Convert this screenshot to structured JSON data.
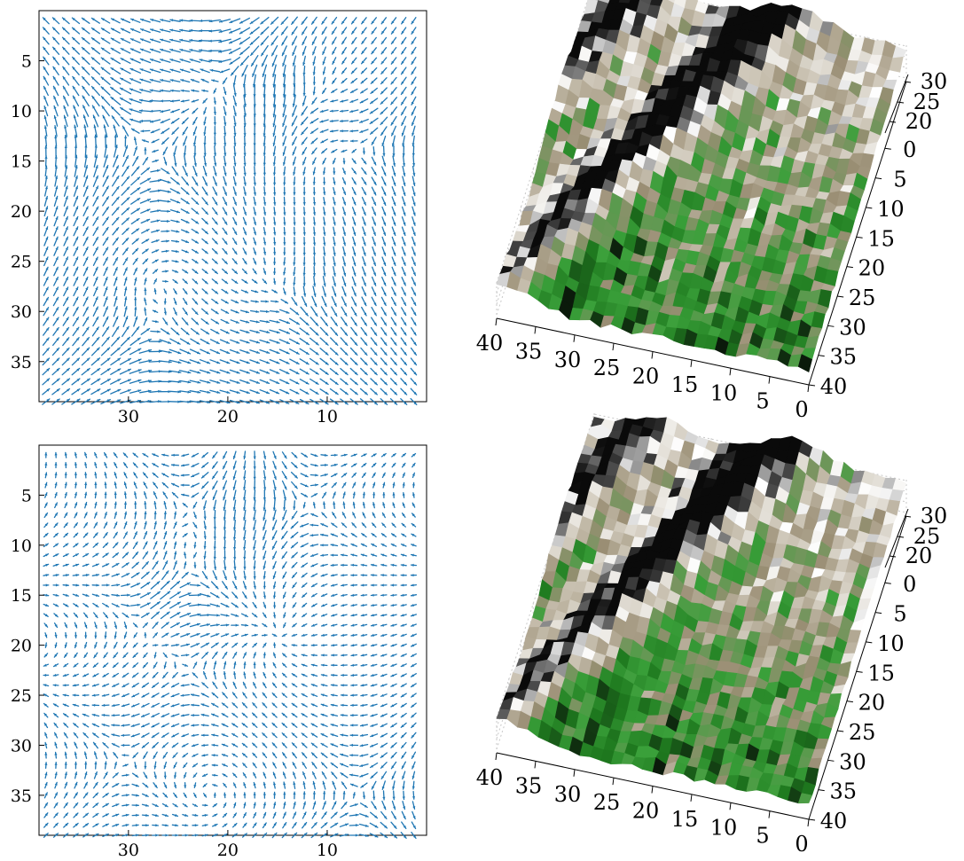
{
  "chart_data": [
    {
      "type": "quiver",
      "panel": "top-left",
      "xlim": [
        39,
        0
      ],
      "ylim": [
        39,
        0
      ],
      "xticks": [
        "30",
        "20",
        "10"
      ],
      "yticks": [
        "5",
        "10",
        "15",
        "20",
        "25",
        "30",
        "35"
      ],
      "grid": false,
      "arrow_color": "#1f77b4",
      "field_seed": 1
    },
    {
      "type": "surface3d",
      "panel": "top-right",
      "x_ticks": [
        "40",
        "35",
        "30",
        "25",
        "20",
        "15",
        "10",
        "5",
        "0"
      ],
      "y_ticks": [
        "0",
        "5",
        "10",
        "15",
        "20",
        "25",
        "30",
        "35",
        "40"
      ],
      "z_ticks": [
        "20",
        "25",
        "30"
      ],
      "colormap": [
        "#0b1a0b",
        "#1f7a1f",
        "#3aa03a",
        "#9a8e74",
        "#c8c0b0",
        "#ffffff",
        "#4a4a4a",
        "#0a0a0a"
      ],
      "grid": true,
      "terrain_seed": 1
    },
    {
      "type": "quiver",
      "panel": "bottom-left",
      "xlim": [
        39,
        0
      ],
      "ylim": [
        39,
        0
      ],
      "xticks": [
        "30",
        "20",
        "10"
      ],
      "yticks": [
        "5",
        "10",
        "15",
        "20",
        "25",
        "30",
        "35"
      ],
      "grid": false,
      "arrow_color": "#1f77b4",
      "field_seed": 2
    },
    {
      "type": "surface3d",
      "panel": "bottom-right",
      "x_ticks": [
        "40",
        "35",
        "30",
        "25",
        "20",
        "15",
        "10",
        "5",
        "0"
      ],
      "y_ticks": [
        "0",
        "5",
        "10",
        "15",
        "20",
        "25",
        "30",
        "35",
        "40"
      ],
      "z_ticks": [
        "20",
        "25",
        "30"
      ],
      "colormap": [
        "#0b1a0b",
        "#1f7a1f",
        "#3aa03a",
        "#9a8e74",
        "#c8c0b0",
        "#ffffff",
        "#4a4a4a",
        "#0a0a0a"
      ],
      "grid": true,
      "terrain_seed": 2
    }
  ]
}
